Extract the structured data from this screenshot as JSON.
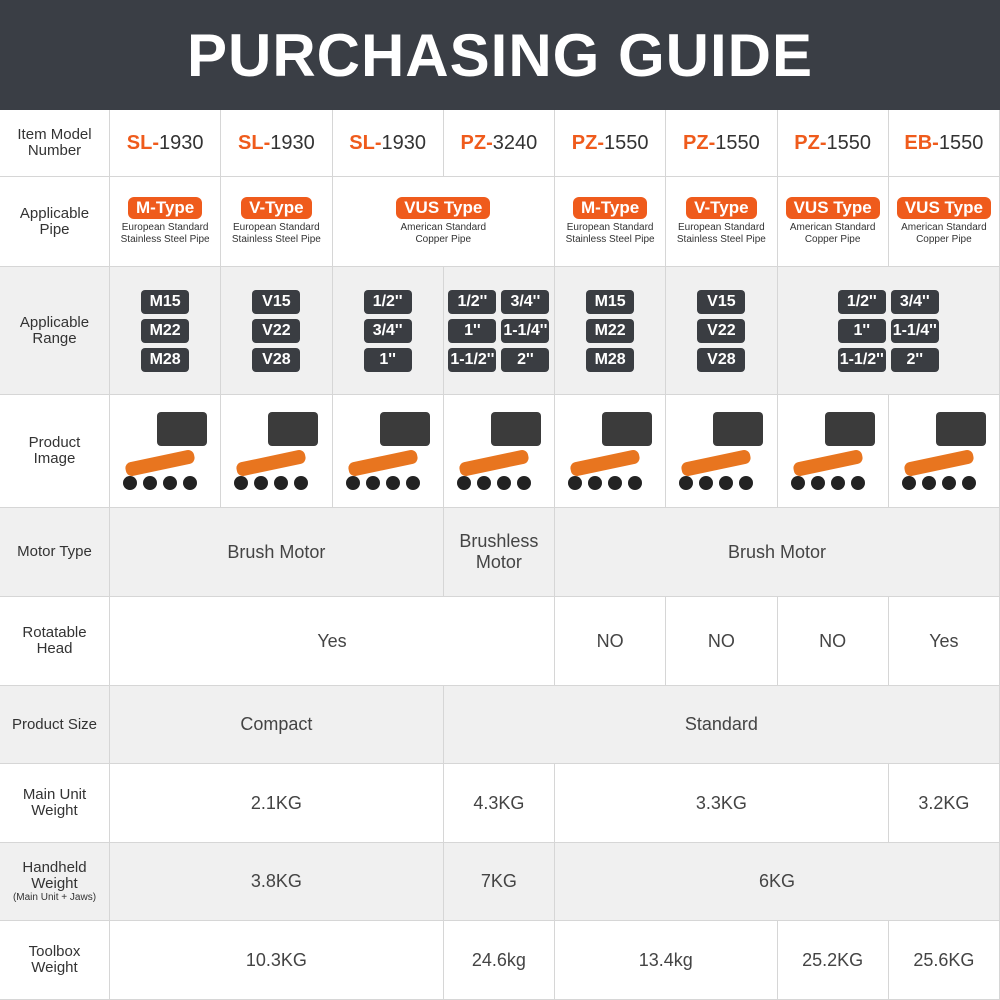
{
  "header": {
    "title": "PURCHASING GUIDE"
  },
  "rows": [
    {
      "label": "Item Model Number",
      "cells": [
        {
          "prefix": "SL-",
          "number": "1930"
        },
        {
          "prefix": "SL-",
          "number": "1930"
        },
        {
          "prefix": "SL-",
          "number": "1930"
        },
        {
          "prefix": "PZ-",
          "number": "3240"
        },
        {
          "prefix": "PZ-",
          "number": "1550"
        },
        {
          "prefix": "PZ-",
          "number": "1550"
        },
        {
          "prefix": "PZ-",
          "number": "1550"
        },
        {
          "prefix": "EB-",
          "number": "1550"
        }
      ]
    },
    {
      "label": "Applicable Pipe",
      "cells": [
        {
          "type": "M-Type",
          "desc": "European Standard Stainless Steel Pipe"
        },
        {
          "type": "V-Type",
          "desc": "European Standard Stainless Steel Pipe"
        },
        {
          "type": "VUS Type",
          "desc": "American Standard Copper Pipe"
        },
        {
          "type": "M-Type",
          "desc": "European Standard Stainless Steel Pipe"
        },
        {
          "type": "V-Type",
          "desc": "European Standard Stainless Steel Pipe"
        },
        {
          "type": "VUS Type",
          "desc": "American Standard Copper Pipe"
        },
        {
          "type": "VUS Type",
          "desc": "American Standard Copper Pipe"
        }
      ]
    },
    {
      "label": "Applicable Range",
      "cells": [
        [
          "M15",
          "M22",
          "M28"
        ],
        [
          "V15",
          "V22",
          "V28"
        ],
        [
          "1/2''",
          "3/4''",
          "1''"
        ],
        [
          "1/2''",
          "3/4''",
          "1''",
          "1-1/4''",
          "1-1/2''",
          "2''"
        ],
        [
          "M15",
          "M22",
          "M28"
        ],
        [
          "V15",
          "V22",
          "V28"
        ],
        [
          "1/2''",
          "3/4''",
          "1''",
          "1-1/4''",
          "1-1/2''",
          "2''"
        ]
      ]
    },
    {
      "label": "Product Image"
    },
    {
      "label": "Motor Type",
      "cells": [
        "Brush Motor",
        "Brushless Motor",
        "Brush Motor"
      ]
    },
    {
      "label": "Rotatable Head",
      "cells": [
        "Yes",
        "NO",
        "NO",
        "NO",
        "Yes"
      ]
    },
    {
      "label": "Product Size",
      "cells": [
        "Compact",
        "Standard"
      ]
    },
    {
      "label": "Main Unit Weight",
      "cells": [
        "2.1KG",
        "4.3KG",
        "3.3KG",
        "3.2KG"
      ]
    },
    {
      "label": "Handheld Weight",
      "note": "(Main Unit + Jaws)",
      "cells": [
        "3.8KG",
        "7KG",
        "6KG"
      ]
    },
    {
      "label": "Toolbox Weight",
      "cells": [
        "10.3KG",
        "24.6kg",
        "13.4kg",
        "25.2KG",
        "25.6KG"
      ]
    }
  ]
}
